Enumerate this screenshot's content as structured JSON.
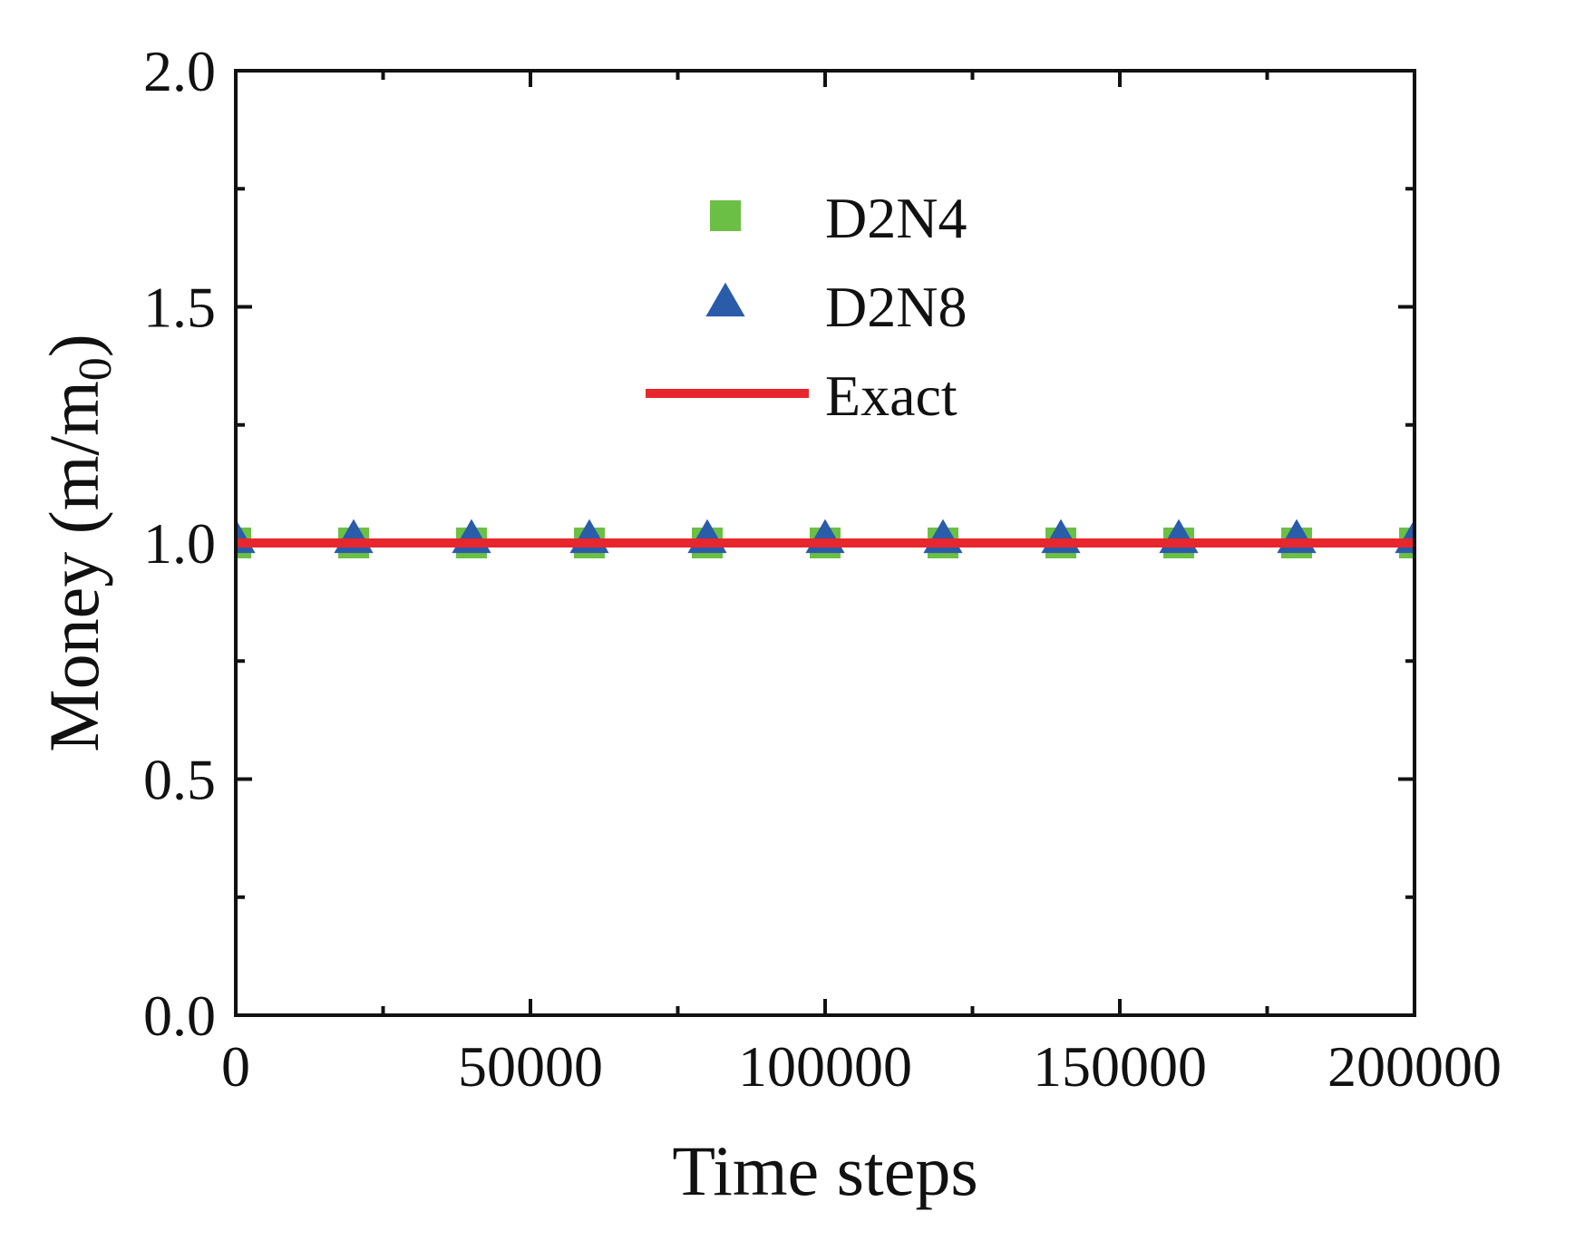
{
  "chart_data": {
    "type": "scatter",
    "xlabel": "Time steps",
    "ylabel": "Money (m/m",
    "ylabel_subscript": "0",
    "ylabel_suffix": ")",
    "xlim": [
      0,
      200000
    ],
    "ylim": [
      0,
      2.0
    ],
    "x_ticks": [
      0,
      50000,
      100000,
      150000,
      200000
    ],
    "x_tick_labels": [
      "0",
      "50000",
      "100000",
      "150000",
      "200000"
    ],
    "x_minor_ticks": [
      25000,
      75000,
      125000,
      175000
    ],
    "y_ticks": [
      0.0,
      0.5,
      1.0,
      1.5,
      2.0
    ],
    "y_tick_labels": [
      "0.0",
      "0.5",
      "1.0",
      "1.5",
      "2.0"
    ],
    "y_minor_ticks": [
      0.25,
      0.75,
      1.25,
      1.75
    ],
    "grid": false,
    "legend_position": "upper-center",
    "series": [
      {
        "name": "D2N4",
        "marker": "square",
        "color": "#6cbf45",
        "x": [
          0,
          20000,
          40000,
          60000,
          80000,
          100000,
          120000,
          140000,
          160000,
          180000,
          200000
        ],
        "y": [
          1.0,
          1.0,
          1.0,
          1.0,
          1.0,
          1.0,
          1.0,
          1.0,
          1.0,
          1.0,
          1.0
        ]
      },
      {
        "name": "D2N8",
        "marker": "triangle",
        "color": "#2a5caa",
        "x": [
          0,
          20000,
          40000,
          60000,
          80000,
          100000,
          120000,
          140000,
          160000,
          180000,
          200000
        ],
        "y": [
          1.0,
          1.0,
          1.0,
          1.0,
          1.0,
          1.0,
          1.0,
          1.0,
          1.0,
          1.0,
          1.0
        ]
      },
      {
        "name": "Exact",
        "marker": "line",
        "color": "#e8262d",
        "x": [
          0,
          200000
        ],
        "y": [
          1.0,
          1.0
        ]
      }
    ]
  }
}
